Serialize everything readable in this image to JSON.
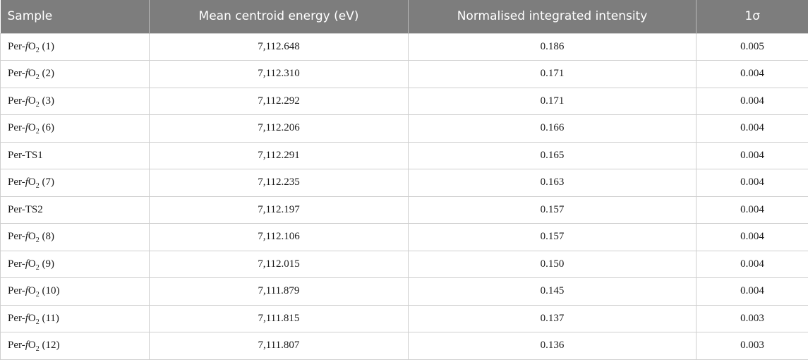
{
  "table": {
    "headers": [
      "Sample",
      "Mean centroid energy (eV)",
      "Normalised integrated intensity",
      "1σ"
    ],
    "rows": [
      {
        "sample": {
          "prefix": "Per-",
          "italic": "f",
          "base": "O",
          "sub": "2",
          "suffix": " (1)"
        },
        "energy": "7,112.648",
        "intensity": "0.186",
        "sigma": "0.005"
      },
      {
        "sample": {
          "prefix": "Per-",
          "italic": "f",
          "base": "O",
          "sub": "2",
          "suffix": " (2)"
        },
        "energy": "7,112.310",
        "intensity": "0.171",
        "sigma": "0.004"
      },
      {
        "sample": {
          "prefix": "Per-",
          "italic": "f",
          "base": "O",
          "sub": "2",
          "suffix": " (3)"
        },
        "energy": "7,112.292",
        "intensity": "0.171",
        "sigma": "0.004"
      },
      {
        "sample": {
          "prefix": "Per-",
          "italic": "f",
          "base": "O",
          "sub": "2",
          "suffix": " (6)"
        },
        "energy": "7,112.206",
        "intensity": "0.166",
        "sigma": "0.004"
      },
      {
        "sample": {
          "prefix": "Per-TS1",
          "italic": "",
          "base": "",
          "sub": "",
          "suffix": ""
        },
        "energy": "7,112.291",
        "intensity": "0.165",
        "sigma": "0.004"
      },
      {
        "sample": {
          "prefix": "Per-",
          "italic": "f",
          "base": "O",
          "sub": "2",
          "suffix": " (7)"
        },
        "energy": "7,112.235",
        "intensity": "0.163",
        "sigma": "0.004"
      },
      {
        "sample": {
          "prefix": "Per-TS2",
          "italic": "",
          "base": "",
          "sub": "",
          "suffix": ""
        },
        "energy": "7,112.197",
        "intensity": "0.157",
        "sigma": "0.004"
      },
      {
        "sample": {
          "prefix": "Per-",
          "italic": "f",
          "base": "O",
          "sub": "2",
          "suffix": " (8)"
        },
        "energy": "7,112.106",
        "intensity": "0.157",
        "sigma": "0.004"
      },
      {
        "sample": {
          "prefix": "Per-",
          "italic": "f",
          "base": "O",
          "sub": "2",
          "suffix": " (9)"
        },
        "energy": "7,112.015",
        "intensity": "0.150",
        "sigma": "0.004"
      },
      {
        "sample": {
          "prefix": "Per-",
          "italic": "f",
          "base": "O",
          "sub": "2",
          "suffix": " (10)"
        },
        "energy": "7,111.879",
        "intensity": "0.145",
        "sigma": "0.004"
      },
      {
        "sample": {
          "prefix": "Per-",
          "italic": "f",
          "base": "O",
          "sub": "2",
          "suffix": " (11)"
        },
        "energy": "7,111.815",
        "intensity": "0.137",
        "sigma": "0.003"
      },
      {
        "sample": {
          "prefix": "Per-",
          "italic": "f",
          "base": "O",
          "sub": "2",
          "suffix": " (12)"
        },
        "energy": "7,111.807",
        "intensity": "0.136",
        "sigma": "0.003"
      }
    ]
  },
  "colors": {
    "header_bg": "#7d7d7d",
    "header_text": "#ffffff",
    "border": "#cfcfcf"
  }
}
